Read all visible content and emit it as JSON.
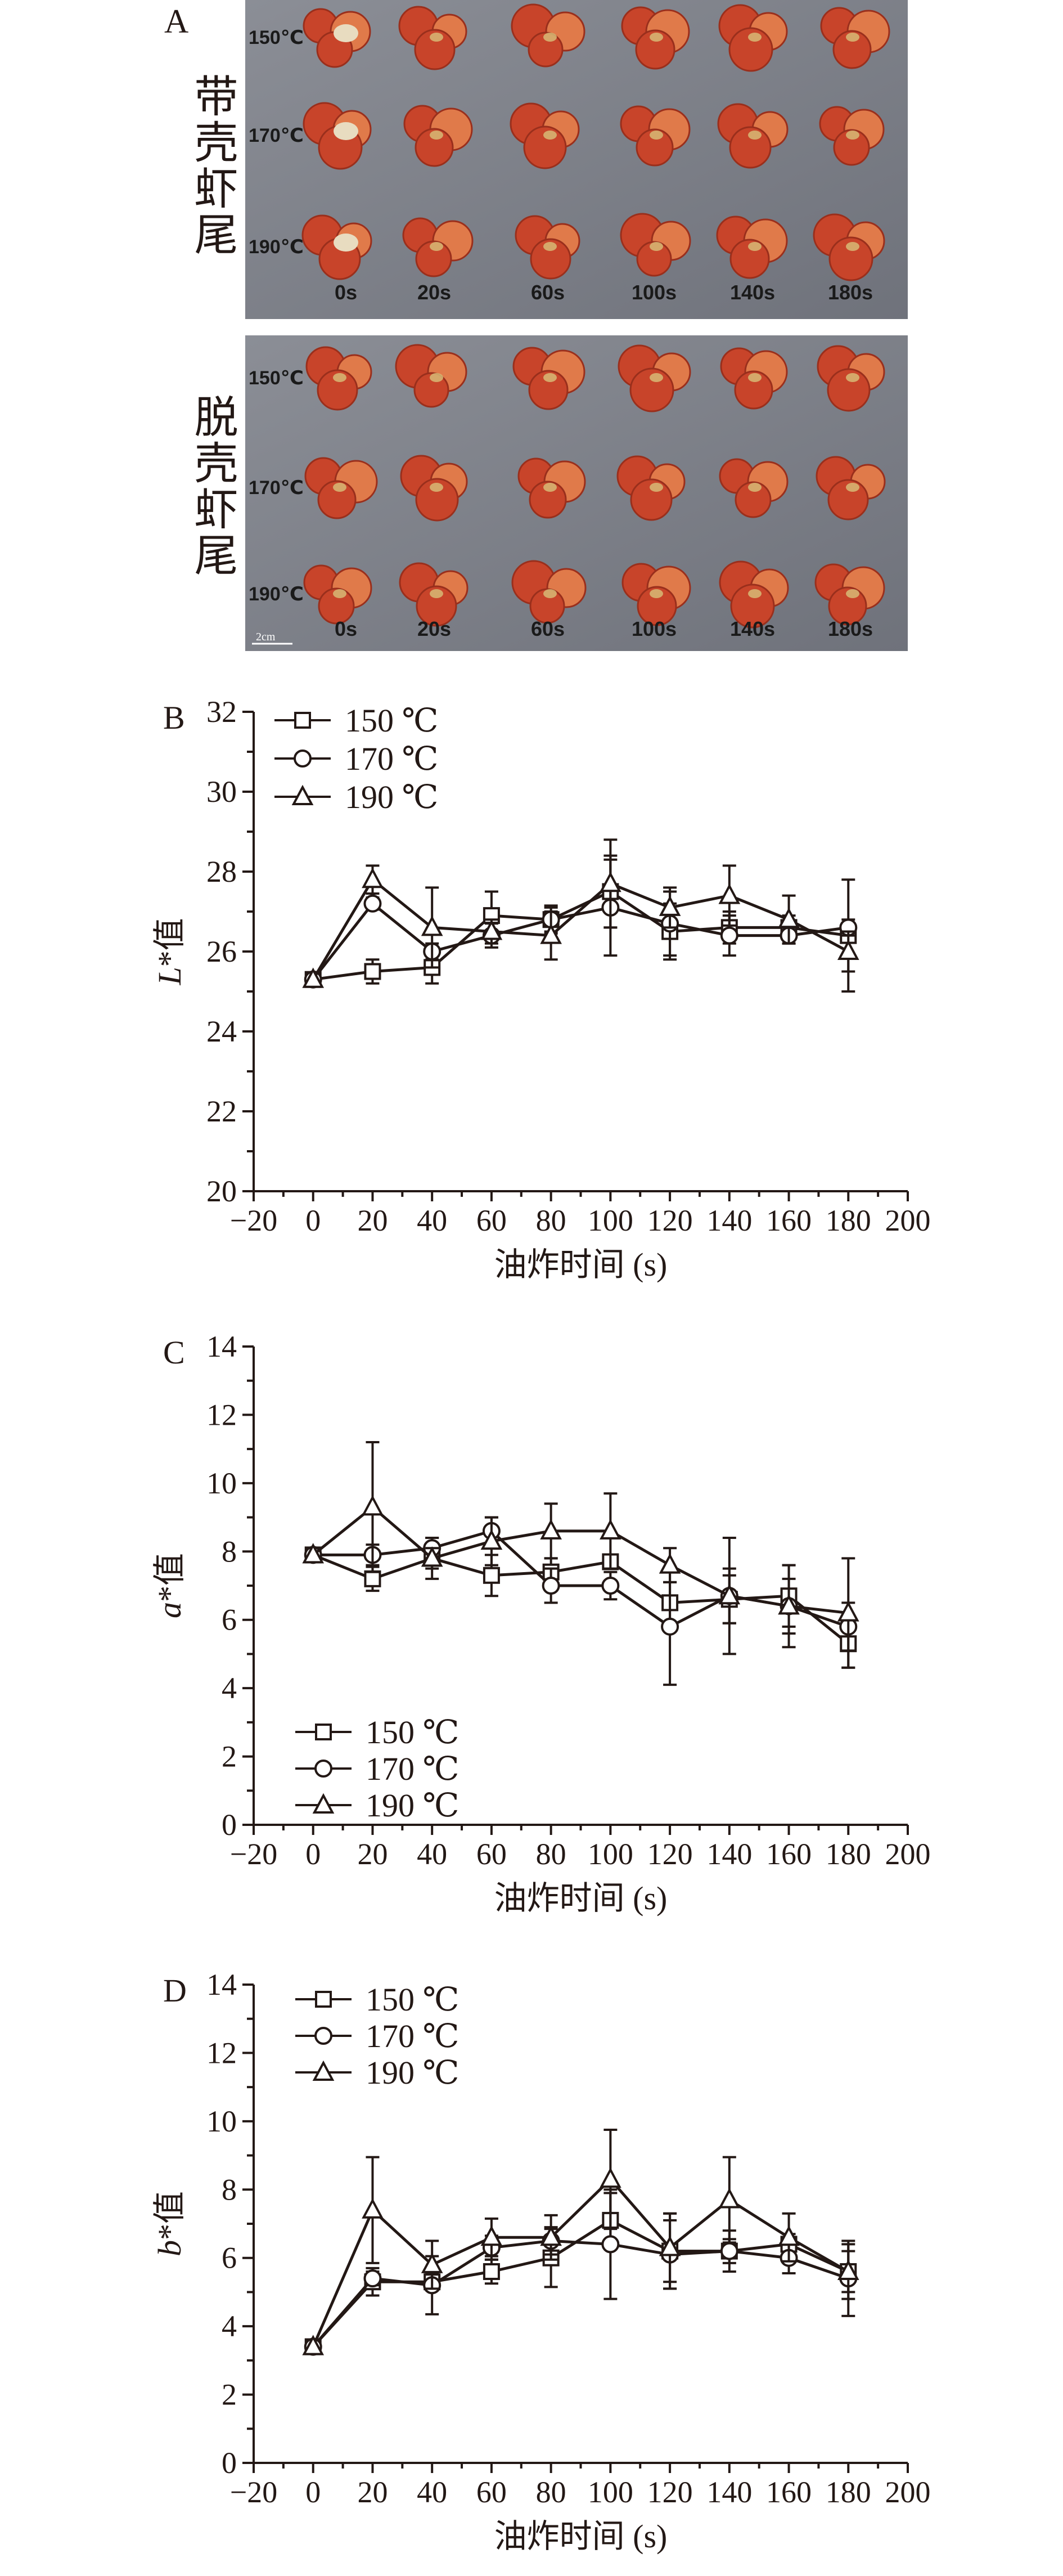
{
  "panel_a": {
    "letter": "A",
    "groups": [
      {
        "label": "带壳虾尾",
        "temps": [
          "150℃",
          "170℃",
          "190℃"
        ]
      },
      {
        "label": "脱壳虾尾",
        "temps": [
          "150℃",
          "170℃",
          "190℃"
        ]
      }
    ],
    "times": [
      "0s",
      "20s",
      "60s",
      "100s",
      "140s",
      "180s"
    ],
    "scale_bar": "2cm",
    "colors": {
      "background": "#7d8088",
      "shrimp": "#c8442a",
      "shrimp_light": "#e07a4a",
      "shell": "#e8dcc0"
    }
  },
  "chart_data": [
    {
      "type": "line",
      "panel": "B",
      "ylabel_var": "L",
      "ylabel_suffix": "*值",
      "xlabel": "油炸时间 (s)",
      "xlim": [
        -20,
        200
      ],
      "ylim": [
        20,
        32
      ],
      "xticks": [
        -20,
        0,
        20,
        40,
        60,
        80,
        100,
        120,
        140,
        160,
        180,
        200
      ],
      "yticks": [
        20,
        22,
        24,
        26,
        28,
        30,
        32
      ],
      "legend": "top-left",
      "grid": false,
      "x": [
        0,
        20,
        40,
        60,
        80,
        100,
        120,
        140,
        160,
        180
      ],
      "series": [
        {
          "name": "150 ℃",
          "marker": "square",
          "values": [
            25.3,
            25.5,
            25.6,
            26.9,
            26.8,
            27.5,
            26.5,
            26.6,
            26.6,
            26.4
          ],
          "err": [
            0.05,
            0.3,
            0.4,
            0.6,
            0.3,
            0.9,
            0.7,
            0.4,
            0.3,
            1.4
          ]
        },
        {
          "name": "170 ℃",
          "marker": "circle",
          "values": [
            25.3,
            27.2,
            26.0,
            26.4,
            26.8,
            27.1,
            26.7,
            26.4,
            26.4,
            26.6
          ],
          "err": [
            0.05,
            0.15,
            0.2,
            0.3,
            0.35,
            1.2,
            0.8,
            0.5,
            0.2,
            0.2
          ]
        },
        {
          "name": "190 ℃",
          "marker": "triangle",
          "values": [
            25.3,
            27.8,
            26.6,
            26.5,
            26.4,
            27.7,
            27.1,
            27.4,
            26.8,
            26.0
          ],
          "err": [
            0.05,
            0.35,
            1.0,
            0.3,
            0.6,
            1.1,
            0.5,
            0.75,
            0.6,
            0.5
          ]
        }
      ]
    },
    {
      "type": "line",
      "panel": "C",
      "ylabel_var": "a",
      "ylabel_suffix": "*值",
      "xlabel": "油炸时间 (s)",
      "xlim": [
        -20,
        200
      ],
      "ylim": [
        0,
        14
      ],
      "xticks": [
        -20,
        0,
        20,
        40,
        60,
        80,
        100,
        120,
        140,
        160,
        180,
        200
      ],
      "yticks": [
        0,
        2,
        4,
        6,
        8,
        10,
        12,
        14
      ],
      "legend": "bottom-left",
      "grid": false,
      "x": [
        0,
        20,
        40,
        60,
        80,
        100,
        120,
        140,
        160,
        180
      ],
      "series": [
        {
          "name": "150 ℃",
          "marker": "square",
          "values": [
            7.9,
            7.2,
            7.8,
            7.3,
            7.4,
            7.7,
            6.5,
            6.6,
            6.7,
            5.3
          ],
          "err": [
            0.05,
            0.35,
            0.6,
            0.6,
            0.4,
            0.2,
            0.6,
            0.7,
            0.9,
            0.7
          ]
        },
        {
          "name": "170 ℃",
          "marker": "circle",
          "values": [
            7.9,
            7.9,
            8.1,
            8.6,
            7.0,
            7.0,
            5.8,
            6.7,
            6.4,
            5.8
          ],
          "err": [
            0.05,
            0.3,
            0.3,
            0.4,
            0.5,
            0.4,
            1.7,
            0.8,
            0.8,
            0.7
          ]
        },
        {
          "name": "190 ℃",
          "marker": "triangle",
          "values": [
            7.9,
            9.3,
            7.8,
            8.3,
            8.6,
            8.6,
            7.6,
            6.7,
            6.4,
            6.2
          ],
          "err": [
            0.05,
            1.9,
            0.3,
            0.7,
            0.8,
            1.1,
            0.5,
            1.7,
            1.2,
            1.6
          ]
        }
      ]
    },
    {
      "type": "line",
      "panel": "D",
      "ylabel_var": "b",
      "ylabel_suffix": "*值",
      "xlabel": "油炸时间 (s)",
      "xlim": [
        -20,
        200
      ],
      "ylim": [
        0,
        14
      ],
      "xticks": [
        -20,
        0,
        20,
        40,
        60,
        80,
        100,
        120,
        140,
        160,
        180,
        200
      ],
      "yticks": [
        0,
        2,
        4,
        6,
        8,
        10,
        12,
        14
      ],
      "legend": "top-left",
      "grid": false,
      "x": [
        0,
        20,
        40,
        60,
        80,
        100,
        120,
        140,
        160,
        180
      ],
      "series": [
        {
          "name": "150 ℃",
          "marker": "square",
          "values": [
            3.4,
            5.3,
            5.3,
            5.6,
            6.0,
            7.1,
            6.2,
            6.2,
            6.4,
            5.6
          ],
          "err": [
            0.05,
            0.4,
            0.25,
            0.35,
            0.85,
            0.8,
            1.1,
            0.35,
            0.3,
            0.6
          ]
        },
        {
          "name": "170 ℃",
          "marker": "circle",
          "values": [
            3.4,
            5.4,
            5.2,
            6.3,
            6.5,
            6.4,
            6.1,
            6.2,
            6.0,
            5.4
          ],
          "err": [
            0.05,
            0.2,
            0.85,
            0.35,
            0.4,
            1.6,
            1.0,
            0.6,
            0.45,
            1.1
          ]
        },
        {
          "name": "190 ℃",
          "marker": "triangle",
          "values": [
            3.4,
            7.4,
            5.8,
            6.6,
            6.6,
            8.3,
            6.3,
            7.7,
            6.6,
            5.6
          ],
          "err": [
            0.05,
            1.55,
            0.7,
            0.55,
            0.65,
            1.45,
            1.0,
            1.25,
            0.7,
            0.8
          ]
        }
      ]
    }
  ]
}
